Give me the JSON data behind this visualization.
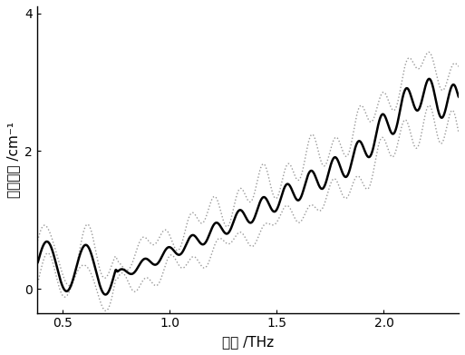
{
  "xlabel": "频率 /THz",
  "ylabel": "吸收系数 /cm⁻¹",
  "xlim": [
    0.38,
    2.35
  ],
  "ylim": [
    -0.35,
    4.1
  ],
  "xticks": [
    0.5,
    1.0,
    1.5,
    2.0
  ],
  "xtick_labels": [
    "0.5",
    "1.0",
    "1.5",
    "2.0"
  ],
  "yticks": [
    0,
    2,
    4
  ],
  "ytick_labels": [
    "0",
    "2",
    "4"
  ],
  "background_color": "#ffffff",
  "line_color": "#000000",
  "dot_color": "#999999",
  "figsize": [
    5.13,
    3.91
  ],
  "dpi": 100
}
